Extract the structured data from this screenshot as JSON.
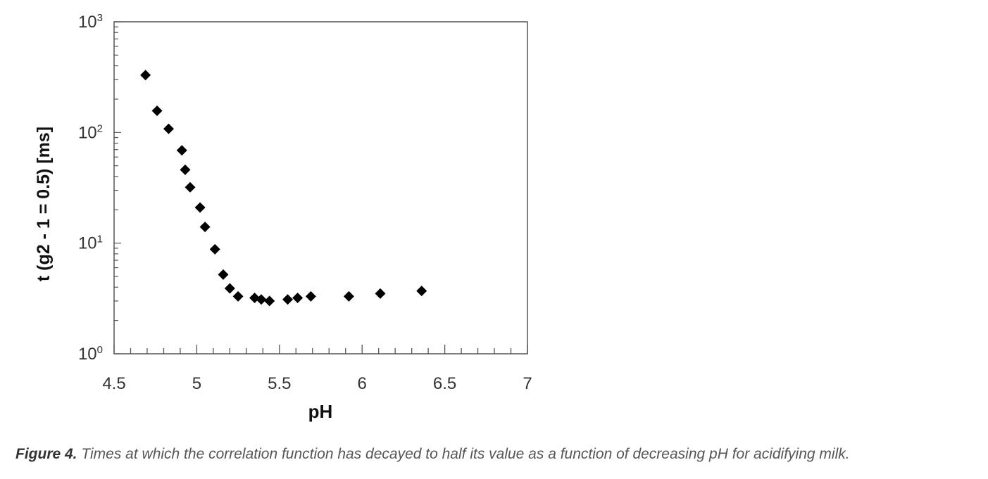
{
  "chart_data": {
    "type": "scatter",
    "xlabel": "pH",
    "ylabel": "t (g2 - 1 = 0.5)   [ms]",
    "yscale": "log",
    "xlim": [
      4.5,
      7
    ],
    "ylim": [
      1,
      1000
    ],
    "x_ticks": [
      "4.5",
      "5",
      "5.5",
      "6",
      "6.5",
      "7"
    ],
    "y_ticks": [
      {
        "base": "10",
        "exp": "0"
      },
      {
        "base": "10",
        "exp": "1"
      },
      {
        "base": "10",
        "exp": "2"
      },
      {
        "base": "10",
        "exp": "3"
      }
    ],
    "grid": false,
    "marker": "diamond",
    "marker_color": "#000000",
    "points": [
      {
        "x": 4.69,
        "y": 330
      },
      {
        "x": 4.76,
        "y": 157
      },
      {
        "x": 4.83,
        "y": 108
      },
      {
        "x": 4.91,
        "y": 69
      },
      {
        "x": 4.93,
        "y": 46
      },
      {
        "x": 4.96,
        "y": 32
      },
      {
        "x": 5.02,
        "y": 21
      },
      {
        "x": 5.05,
        "y": 14
      },
      {
        "x": 5.11,
        "y": 8.8
      },
      {
        "x": 5.16,
        "y": 5.2
      },
      {
        "x": 5.2,
        "y": 3.9
      },
      {
        "x": 5.25,
        "y": 3.3
      },
      {
        "x": 5.35,
        "y": 3.2
      },
      {
        "x": 5.39,
        "y": 3.1
      },
      {
        "x": 5.44,
        "y": 3.0
      },
      {
        "x": 5.55,
        "y": 3.1
      },
      {
        "x": 5.61,
        "y": 3.2
      },
      {
        "x": 5.69,
        "y": 3.3
      },
      {
        "x": 5.92,
        "y": 3.3
      },
      {
        "x": 6.11,
        "y": 3.5
      },
      {
        "x": 6.36,
        "y": 3.7
      }
    ]
  },
  "caption": {
    "label": "Figure 4.",
    "text": " Times at which the correlation function has decayed to half its value as a function of decreasing pH for acidifying milk."
  }
}
